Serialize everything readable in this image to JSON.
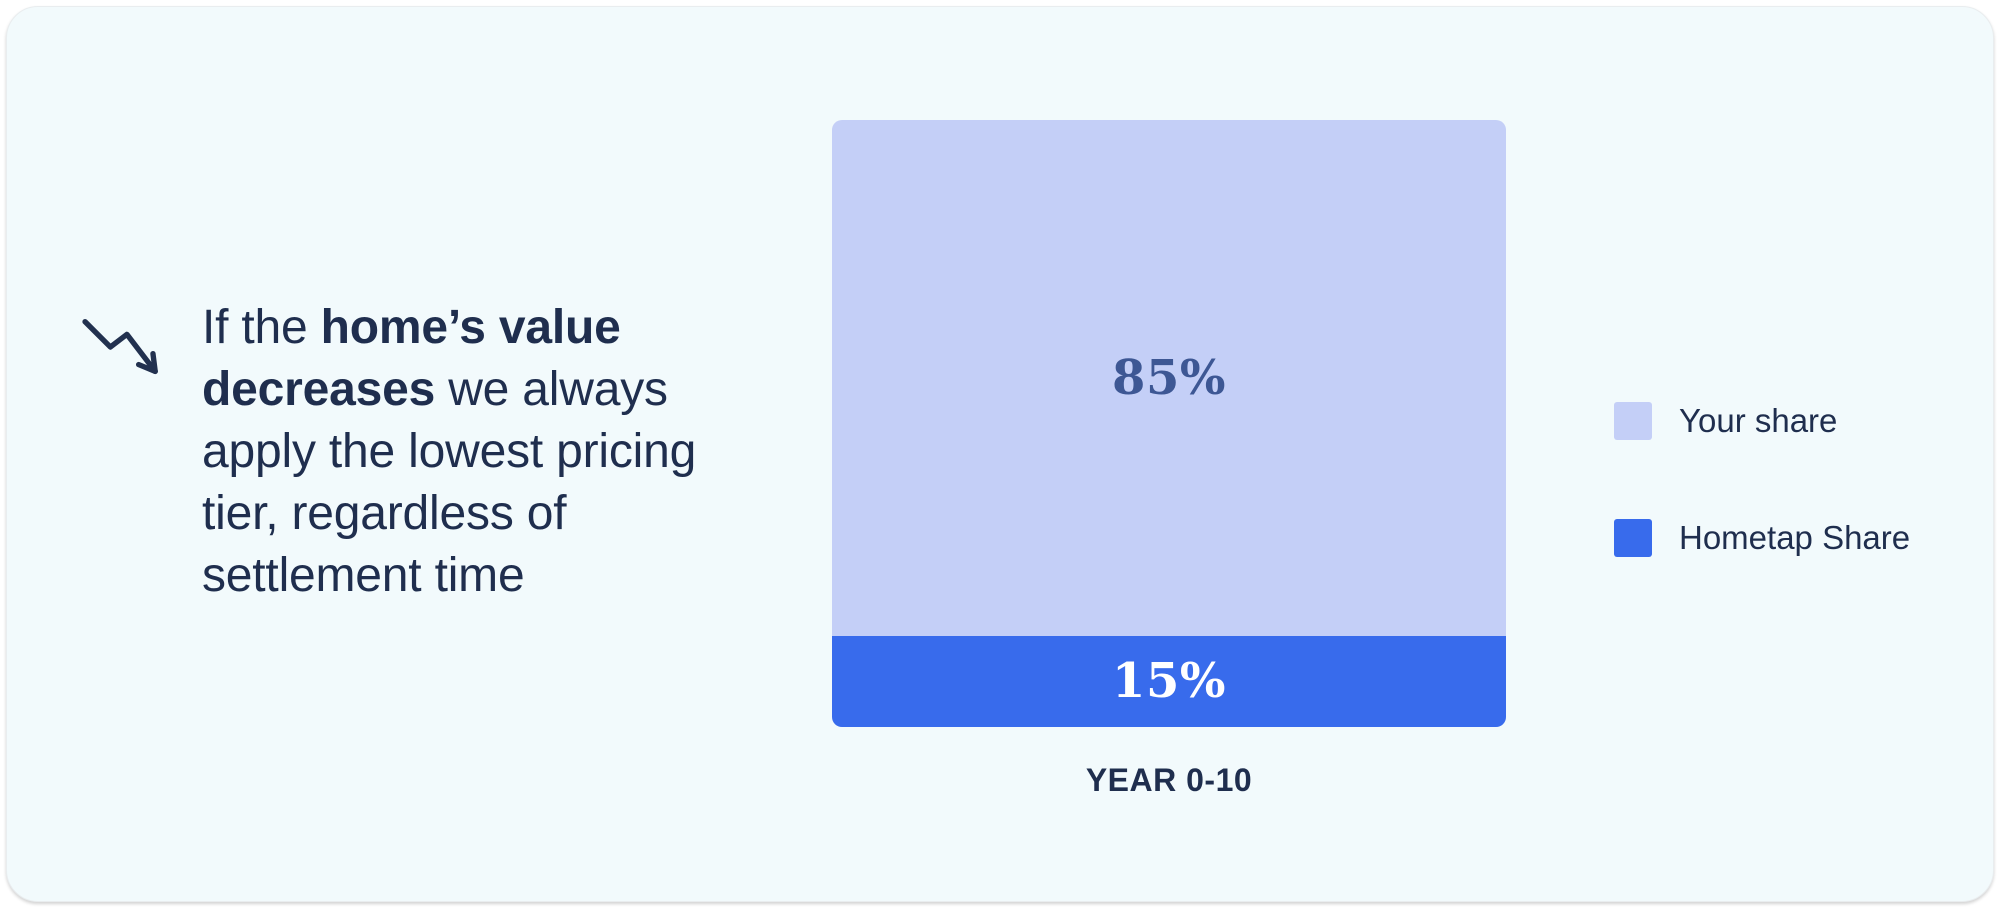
{
  "card": {
    "background_color": "#f2fafc",
    "text_color": "#1f2e4e"
  },
  "callout": {
    "icon": "trend-down-icon",
    "text_prefix": "If the ",
    "text_bold": "home’s value decreases",
    "text_suffix": " we always apply the lowest pricing tier, regardless of settlement time"
  },
  "chart_data": {
    "type": "bar",
    "stacked": true,
    "orientation": "vertical",
    "categories": [
      "YEAR 0-10"
    ],
    "series": [
      {
        "name": "Your share",
        "values": [
          85
        ],
        "data_label": "85%",
        "color": "#c4cff7",
        "label_color": "#3d5794"
      },
      {
        "name": "Hometap Share",
        "values": [
          15
        ],
        "data_label": "15%",
        "color": "#386bec",
        "label_color": "#ffffff"
      }
    ],
    "ylim": [
      0,
      100
    ],
    "grid": false,
    "axes_shown": false,
    "legend_position": "right",
    "x_tick_label": "YEAR 0-10",
    "title": "",
    "xlabel": "",
    "ylabel": ""
  },
  "legend": {
    "items": [
      {
        "label": "Your share",
        "color": "#c4cff7"
      },
      {
        "label": "Hometap Share",
        "color": "#386bec"
      }
    ]
  }
}
